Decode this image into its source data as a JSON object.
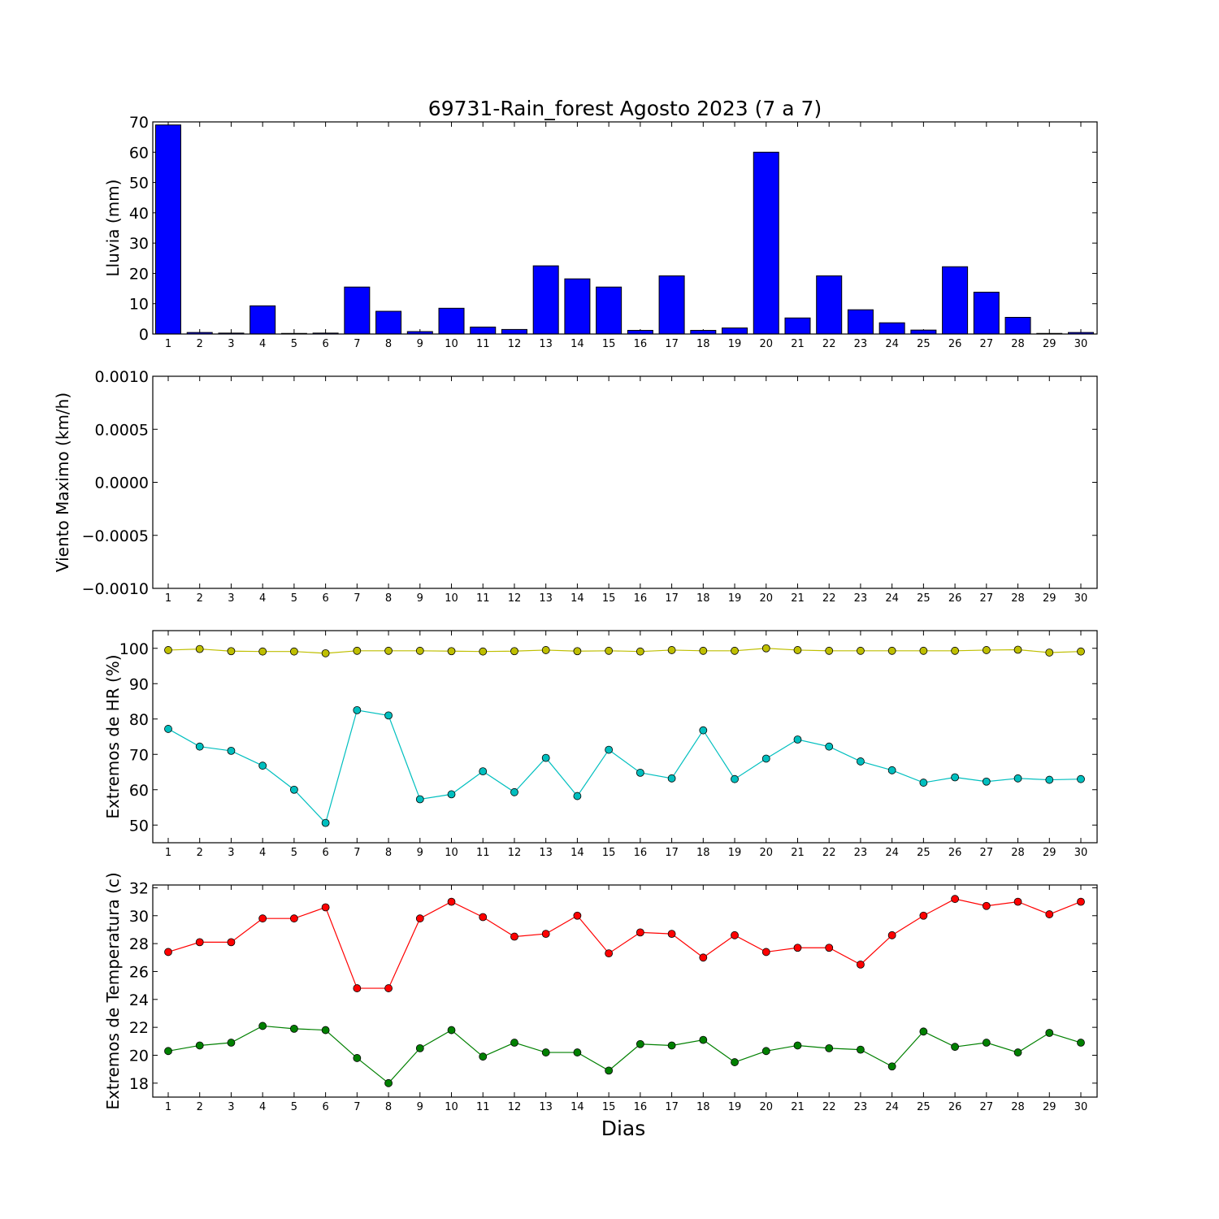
{
  "chart_data": [
    {
      "type": "bar",
      "title": "69731-Rain_forest Agosto 2023  (7 a 7)",
      "ylabel": "Lluvia (mm)",
      "xlabel": "",
      "ylim": [
        0,
        70
      ],
      "yticks": [
        "0",
        "10",
        "20",
        "30",
        "40",
        "50",
        "60",
        "70"
      ],
      "categories": [
        "1",
        "2",
        "3",
        "4",
        "5",
        "6",
        "7",
        "8",
        "9",
        "10",
        "11",
        "12",
        "13",
        "14",
        "15",
        "16",
        "17",
        "18",
        "19",
        "20",
        "21",
        "22",
        "23",
        "24",
        "25",
        "26",
        "27",
        "28",
        "29",
        "30"
      ],
      "values": [
        69,
        0.5,
        0.3,
        9.3,
        0.2,
        0.3,
        15.5,
        7.5,
        0.8,
        8.5,
        2.3,
        1.5,
        22.5,
        18.2,
        15.5,
        1.2,
        19.2,
        1.2,
        2.0,
        60,
        5.3,
        19.2,
        8.0,
        3.7,
        1.3,
        22.2,
        13.8,
        5.5,
        0.2,
        0.5
      ],
      "color": "#0000ff",
      "grid": false
    },
    {
      "type": "line",
      "title": "",
      "ylabel": "Viento Maximo (km/h)",
      "xlabel": "",
      "ylim": [
        -0.001,
        0.001
      ],
      "yticks": [
        "−0.0010",
        "−0.0005",
        "0.0000",
        "0.0005",
        "0.0010"
      ],
      "categories": [
        "1",
        "2",
        "3",
        "4",
        "5",
        "6",
        "7",
        "8",
        "9",
        "10",
        "11",
        "12",
        "13",
        "14",
        "15",
        "16",
        "17",
        "18",
        "19",
        "20",
        "21",
        "22",
        "23",
        "24",
        "25",
        "26",
        "27",
        "28",
        "29",
        "30"
      ],
      "series": [],
      "grid": false
    },
    {
      "type": "line",
      "title": "",
      "ylabel": "Extremos de HR (%)",
      "xlabel": "",
      "ylim": [
        45,
        105
      ],
      "yticks": [
        "50",
        "60",
        "70",
        "80",
        "90",
        "100"
      ],
      "categories": [
        "1",
        "2",
        "3",
        "4",
        "5",
        "6",
        "7",
        "8",
        "9",
        "10",
        "11",
        "12",
        "13",
        "14",
        "15",
        "16",
        "17",
        "18",
        "19",
        "20",
        "21",
        "22",
        "23",
        "24",
        "25",
        "26",
        "27",
        "28",
        "29",
        "30"
      ],
      "series": [
        {
          "color": "#bfbf00",
          "values": [
            99.5,
            99.8,
            99.2,
            99.1,
            99.1,
            98.6,
            99.3,
            99.3,
            99.3,
            99.2,
            99.1,
            99.2,
            99.5,
            99.2,
            99.3,
            99.1,
            99.5,
            99.3,
            99.3,
            100,
            99.5,
            99.3,
            99.3,
            99.3,
            99.3,
            99.3,
            99.5,
            99.6,
            98.8,
            99.1
          ]
        },
        {
          "color": "#00bfbf",
          "values": [
            77.2,
            72.2,
            71.0,
            66.8,
            60.0,
            50.6,
            82.5,
            81.0,
            57.3,
            58.7,
            65.2,
            59.3,
            69.0,
            58.2,
            71.3,
            64.8,
            63.2,
            76.8,
            63.0,
            68.8,
            74.2,
            72.2,
            68.0,
            65.5,
            62.0,
            63.5,
            62.3,
            63.2,
            62.8,
            63.0
          ]
        }
      ],
      "grid": false
    },
    {
      "type": "line",
      "title": "",
      "ylabel": "Extremos de Temperatura (c)",
      "xlabel": "Dias",
      "ylim": [
        17,
        32.2
      ],
      "yticks": [
        "18",
        "20",
        "22",
        "24",
        "26",
        "28",
        "30",
        "32"
      ],
      "categories": [
        "1",
        "2",
        "3",
        "4",
        "5",
        "6",
        "7",
        "8",
        "9",
        "10",
        "11",
        "12",
        "13",
        "14",
        "15",
        "16",
        "17",
        "18",
        "19",
        "20",
        "21",
        "22",
        "23",
        "24",
        "25",
        "26",
        "27",
        "28",
        "29",
        "30"
      ],
      "series": [
        {
          "color": "#ff0000",
          "values": [
            27.4,
            28.1,
            28.1,
            29.8,
            29.8,
            30.6,
            24.8,
            24.8,
            29.8,
            31.0,
            29.9,
            28.5,
            28.7,
            30.0,
            27.3,
            28.8,
            28.7,
            27.0,
            28.6,
            27.4,
            27.7,
            27.7,
            26.5,
            28.6,
            30.0,
            31.2,
            30.7,
            31.0,
            30.1,
            31.0
          ]
        },
        {
          "color": "#008000",
          "values": [
            20.3,
            20.7,
            20.9,
            22.1,
            21.9,
            21.8,
            19.8,
            18.0,
            20.5,
            21.8,
            19.9,
            20.9,
            20.2,
            20.2,
            18.9,
            20.8,
            20.7,
            21.1,
            19.5,
            20.3,
            20.7,
            20.5,
            20.4,
            19.2,
            21.7,
            20.6,
            20.9,
            20.2,
            21.6,
            20.9
          ]
        }
      ],
      "grid": false
    }
  ]
}
